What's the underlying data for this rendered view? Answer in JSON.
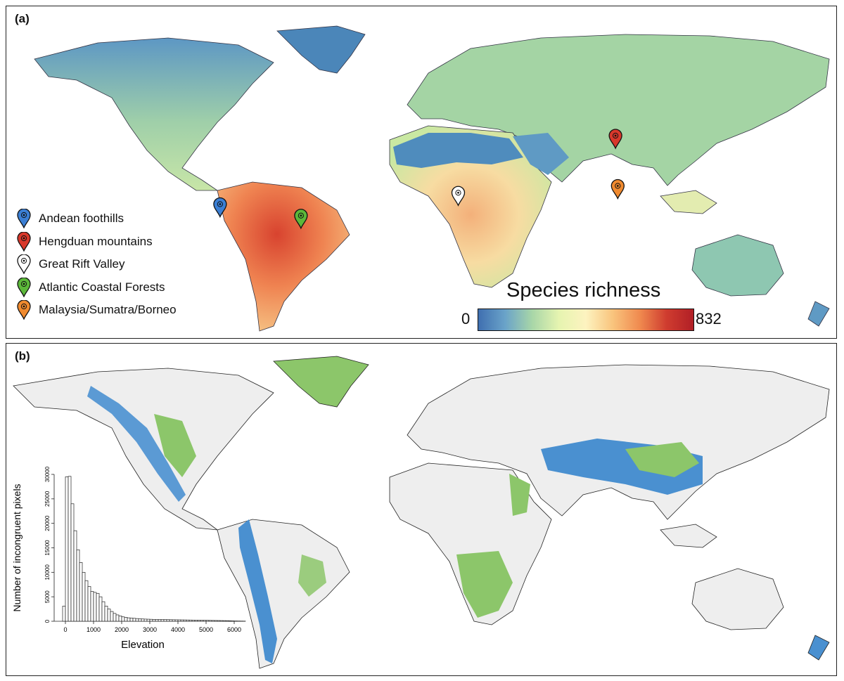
{
  "panel_a": {
    "label": "(a)",
    "legend": [
      {
        "label": "Andean foothills",
        "color": "#3b7fd4"
      },
      {
        "label": "Hengduan mountains",
        "color": "#d8382b"
      },
      {
        "label": "Great Rift Valley",
        "color": "#ffffff"
      },
      {
        "label": "Atlantic Coastal Forests",
        "color": "#5cb83a"
      },
      {
        "label": "Malaysia/Sumatra/Borneo",
        "color": "#f08a2f"
      }
    ],
    "colorbar": {
      "title": "Species richness",
      "min_label": "0",
      "max_label": "832",
      "colors": [
        "#3f6fb0",
        "#a8d6a8",
        "#fdf3c0",
        "#f08a4f",
        "#b11f26"
      ]
    },
    "hotspots": [
      {
        "name": "Andean foothills",
        "lon": -76,
        "lat": -3
      },
      {
        "name": "Hengduan mountains",
        "lon": 100,
        "lat": 27
      },
      {
        "name": "Great Rift Valley",
        "lon": 30,
        "lat": 2
      },
      {
        "name": "Atlantic Coastal Forests",
        "lon": -40,
        "lat": -8
      },
      {
        "name": "Malaysia/Sumatra/Borneo",
        "lon": 101,
        "lat": 5
      }
    ]
  },
  "panel_b": {
    "label": "(b)",
    "colors": {
      "land": "#eeeeee",
      "incongruent_high": "#4a90d0",
      "incongruent_green": "#8cc66a",
      "incongruent_orange": "#f0a670"
    },
    "inset_histogram": {
      "chart_data": {
        "type": "bar",
        "xlabel": "Elevation",
        "ylabel": "Number of incongruent pixels",
        "xlim": [
          -400,
          6400
        ],
        "ylim": [
          0,
          30000
        ],
        "xticks": [
          "0",
          "1000",
          "2000",
          "3000",
          "4000",
          "5000",
          "6000"
        ],
        "yticks": [
          "0",
          "5000",
          "10000",
          "15000",
          "20000",
          "25000",
          "30000"
        ],
        "bin_width": 100,
        "bin_start": -100,
        "values": [
          3100,
          29500,
          29600,
          24000,
          18500,
          14600,
          12000,
          10000,
          8300,
          7100,
          6100,
          5900,
          5700,
          5000,
          4000,
          3100,
          2500,
          2000,
          1600,
          1300,
          1100,
          900,
          800,
          700,
          650,
          600,
          550,
          500,
          470,
          440,
          420,
          400,
          380,
          370,
          360,
          350,
          340,
          330,
          320,
          310,
          300,
          290,
          280,
          270,
          260,
          250,
          240,
          230,
          220,
          210,
          200,
          190,
          180,
          170,
          160,
          150,
          140,
          130,
          120,
          100,
          80,
          60,
          50,
          40,
          30
        ]
      }
    }
  }
}
